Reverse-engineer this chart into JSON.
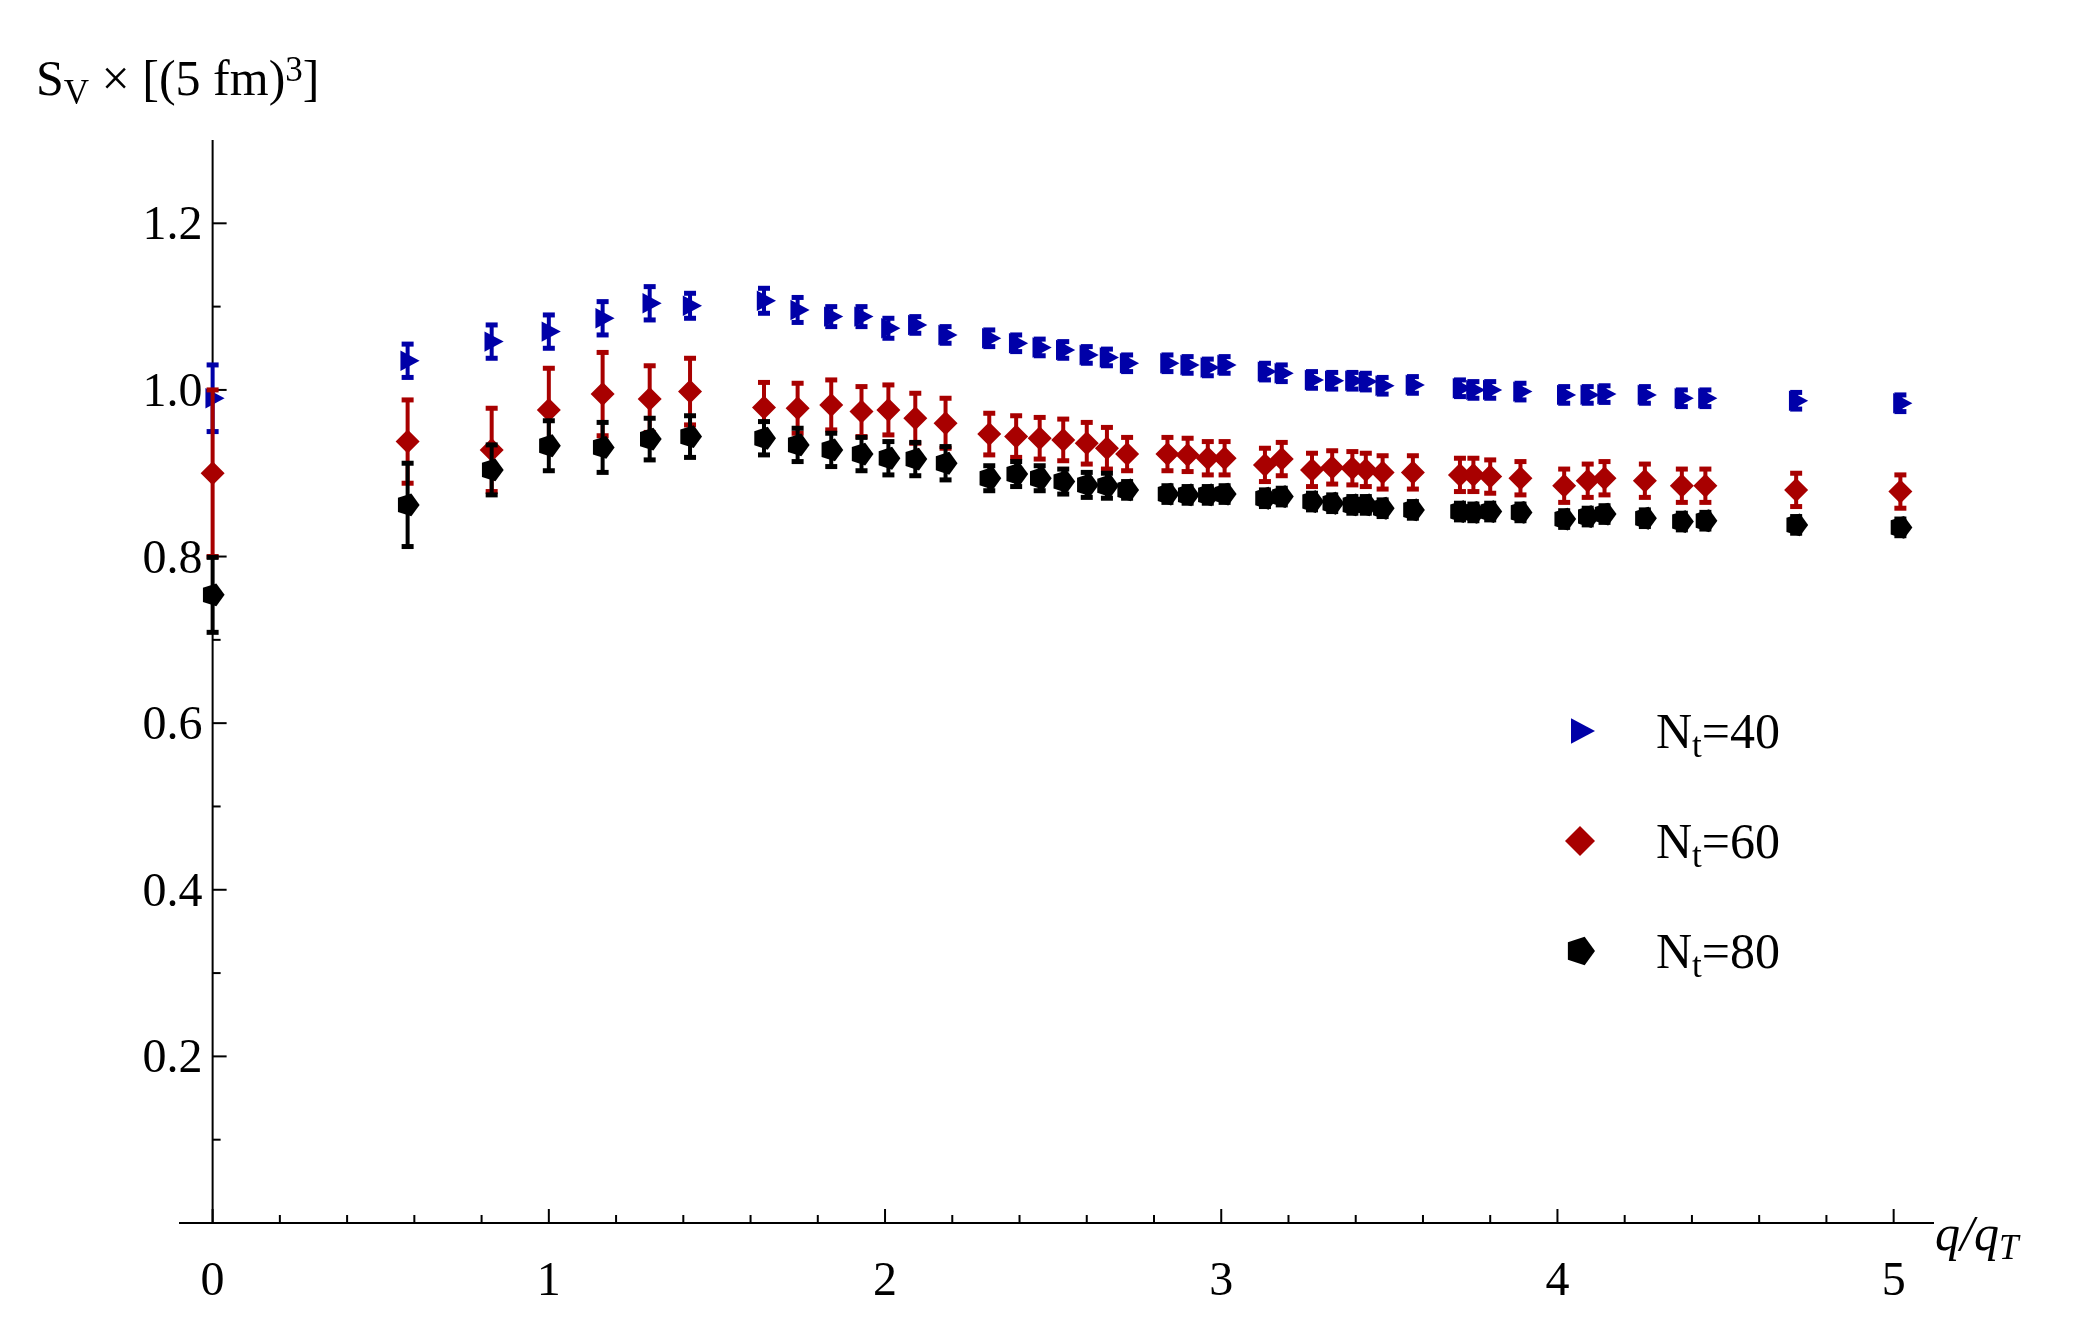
{
  "chart_data": {
    "type": "scatter",
    "ylabel": "S$_{V}$ × [(5 fm)$^{3}$]",
    "xlabel": "q/q$_{T}$",
    "x": [
      0,
      0.58,
      0.83,
      1.0,
      1.16,
      1.3,
      1.42,
      1.64,
      1.74,
      1.84,
      1.93,
      2.01,
      2.09,
      2.18,
      2.31,
      2.39,
      2.46,
      2.53,
      2.6,
      2.66,
      2.72,
      2.84,
      2.9,
      2.96,
      3.01,
      3.13,
      3.18,
      3.27,
      3.33,
      3.39,
      3.43,
      3.48,
      3.57,
      3.71,
      3.75,
      3.8,
      3.89,
      4.02,
      4.09,
      4.14,
      4.26,
      4.37,
      4.44,
      4.71,
      5.02
    ],
    "series": [
      {
        "name": "N$_{t}$=40",
        "color": "#0000a8",
        "marker": "triangle",
        "values": [
          0.99,
          1.035,
          1.058,
          1.07,
          1.086,
          1.104,
          1.101,
          1.107,
          1.096,
          1.088,
          1.088,
          1.074,
          1.078,
          1.066,
          1.062,
          1.056,
          1.051,
          1.048,
          1.042,
          1.039,
          1.032,
          1.032,
          1.03,
          1.027,
          1.03,
          1.022,
          1.02,
          1.012,
          1.011,
          1.011,
          1.01,
          1.005,
          1.006,
          1.002,
          1.0,
          1.0,
          0.998,
          0.994,
          0.994,
          0.995,
          0.994,
          0.99,
          0.99,
          0.987,
          0.984
        ],
        "errors": [
          0.04,
          0.02,
          0.02,
          0.02,
          0.02,
          0.02,
          0.015,
          0.015,
          0.015,
          0.012,
          0.012,
          0.012,
          0.01,
          0.01,
          0.01,
          0.01,
          0.01,
          0.01,
          0.01,
          0.01,
          0.01,
          0.01,
          0.01,
          0.01,
          0.01,
          0.01,
          0.01,
          0.01,
          0.01,
          0.01,
          0.01,
          0.01,
          0.01,
          0.01,
          0.01,
          0.01,
          0.01,
          0.01,
          0.01,
          0.01,
          0.01,
          0.01,
          0.01,
          0.01,
          0.01
        ]
      },
      {
        "name": "N$_{t}$=60",
        "color": "#a80000",
        "marker": "diamond",
        "values": [
          0.9,
          0.938,
          0.928,
          0.976,
          0.995,
          0.989,
          0.998,
          0.979,
          0.978,
          0.982,
          0.974,
          0.976,
          0.966,
          0.96,
          0.947,
          0.944,
          0.942,
          0.94,
          0.936,
          0.93,
          0.923,
          0.923,
          0.922,
          0.918,
          0.918,
          0.91,
          0.917,
          0.904,
          0.907,
          0.906,
          0.904,
          0.901,
          0.901,
          0.898,
          0.898,
          0.896,
          0.894,
          0.885,
          0.891,
          0.894,
          0.891,
          0.885,
          0.885,
          0.88,
          0.878
        ],
        "errors": [
          0.1,
          0.05,
          0.05,
          0.05,
          0.05,
          0.04,
          0.04,
          0.03,
          0.03,
          0.03,
          0.03,
          0.03,
          0.03,
          0.03,
          0.025,
          0.025,
          0.025,
          0.025,
          0.025,
          0.025,
          0.02,
          0.02,
          0.02,
          0.02,
          0.02,
          0.02,
          0.02,
          0.02,
          0.02,
          0.02,
          0.02,
          0.02,
          0.02,
          0.02,
          0.02,
          0.02,
          0.02,
          0.02,
          0.02,
          0.02,
          0.02,
          0.02,
          0.02,
          0.02,
          0.02
        ]
      },
      {
        "name": "N$_{t}$=80",
        "color": "#000000",
        "values": [
          0.754,
          0.862,
          0.904,
          0.933,
          0.931,
          0.941,
          0.944,
          0.942,
          0.934,
          0.928,
          0.923,
          0.918,
          0.917,
          0.912,
          0.894,
          0.899,
          0.894,
          0.89,
          0.886,
          0.885,
          0.88,
          0.875,
          0.874,
          0.874,
          0.875,
          0.87,
          0.872,
          0.866,
          0.864,
          0.862,
          0.862,
          0.858,
          0.856,
          0.854,
          0.853,
          0.854,
          0.853,
          0.845,
          0.848,
          0.851,
          0.846,
          0.842,
          0.843,
          0.838,
          0.835
        ],
        "errors": [
          0.045,
          0.05,
          0.03,
          0.03,
          0.03,
          0.025,
          0.025,
          0.02,
          0.02,
          0.02,
          0.02,
          0.02,
          0.02,
          0.02,
          0.015,
          0.015,
          0.015,
          0.015,
          0.015,
          0.015,
          0.01,
          0.01,
          0.01,
          0.01,
          0.01,
          0.01,
          0.01,
          0.01,
          0.01,
          0.01,
          0.01,
          0.01,
          0.01,
          0.01,
          0.01,
          0.01,
          0.01,
          0.01,
          0.01,
          0.01,
          0.01,
          0.01,
          0.01,
          0.01,
          0.01
        ]
      }
    ],
    "xlim": [
      -0.1,
      5.12
    ],
    "ylim": [
      0,
      1.3
    ],
    "xticks": [
      0,
      {
        "value": 0.2,
        "label": null
      },
      {
        "value": 0.4,
        "label": null
      },
      {
        "value": 0.6,
        "label": null
      },
      {
        "value": 0.8,
        "label": null
      },
      1,
      {
        "value": 1.2,
        "label": null
      },
      {
        "value": 1.4,
        "label": null
      },
      {
        "value": 1.6,
        "label": null
      },
      {
        "value": 1.8,
        "label": null
      },
      2,
      {
        "value": 2.2,
        "label": null
      },
      {
        "value": 2.4,
        "label": null
      },
      {
        "value": 2.6,
        "label": null
      },
      {
        "value": 2.8,
        "label": null
      },
      3,
      {
        "value": 3.2,
        "label": null
      },
      {
        "value": 3.4,
        "label": null
      },
      {
        "value": 3.6,
        "label": null
      },
      {
        "value": 3.8,
        "label": null
      },
      4,
      {
        "value": 4.2,
        "label": null
      },
      {
        "value": 4.4,
        "label": null
      },
      {
        "value": 4.6,
        "label": null
      },
      {
        "value": 4.8,
        "label": null
      },
      5
    ],
    "yticks": [
      {
        "value": 0.1,
        "label": null
      },
      0.2,
      {
        "value": 0.3,
        "label": null
      },
      0.4,
      {
        "value": 0.5,
        "label": null
      },
      0.6,
      {
        "value": 0.7,
        "label": null
      },
      0.8,
      {
        "value": 0.9,
        "label": null
      },
      {
        "value": 1.0,
        "label": "1.0"
      },
      {
        "value": 1.1,
        "label": null
      },
      1.2
    ],
    "grid": false,
    "legend": "right"
  }
}
